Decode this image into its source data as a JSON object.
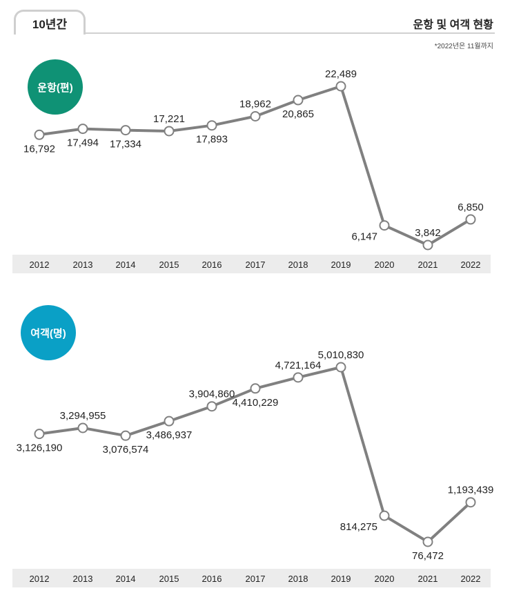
{
  "header": {
    "tab_label": "10년간",
    "title": "운항 및 여객 현황",
    "note": "*2022년은 11월까지"
  },
  "colors": {
    "line": "#808080",
    "flights_badge": "#0f9275",
    "passengers_badge": "#0aa0c6",
    "axis_band": "#ececec"
  },
  "chart_data": [
    {
      "type": "line",
      "badge_label": "운항(편)",
      "categories": [
        "2012",
        "2013",
        "2014",
        "2015",
        "2016",
        "2017",
        "2018",
        "2019",
        "2020",
        "2021",
        "2022"
      ],
      "values": [
        16792,
        17494,
        17334,
        17221,
        17893,
        18962,
        20865,
        22489,
        6147,
        3842,
        6850
      ],
      "value_labels": [
        "16,792",
        "17,494",
        "17,334",
        "17,221",
        "17,893",
        "18,962",
        "20,865",
        "22,489",
        "6,147",
        "3,842",
        "6,850"
      ],
      "label_pos": [
        "below",
        "below",
        "below",
        "above",
        "below",
        "above",
        "below",
        "above",
        "left",
        "above",
        "above"
      ],
      "grid": false
    },
    {
      "type": "line",
      "badge_label": "여객(명)",
      "categories": [
        "2012",
        "2013",
        "2014",
        "2015",
        "2016",
        "2017",
        "2018",
        "2019",
        "2020",
        "2021",
        "2022"
      ],
      "values": [
        3126190,
        3294955,
        3076574,
        3486937,
        3904860,
        4410229,
        4721164,
        5010830,
        814275,
        76472,
        1193439
      ],
      "value_labels": [
        "3,126,190",
        "3,294,955",
        "3,076,574",
        "3,486,937",
        "3,904,860",
        "4,410,229",
        "4,721,164",
        "5,010,830",
        "814,275",
        "76,472",
        "1,193,439"
      ],
      "label_pos": [
        "below",
        "above",
        "below",
        "below",
        "above",
        "below",
        "above",
        "above",
        "left",
        "below",
        "above"
      ],
      "grid": false
    }
  ]
}
